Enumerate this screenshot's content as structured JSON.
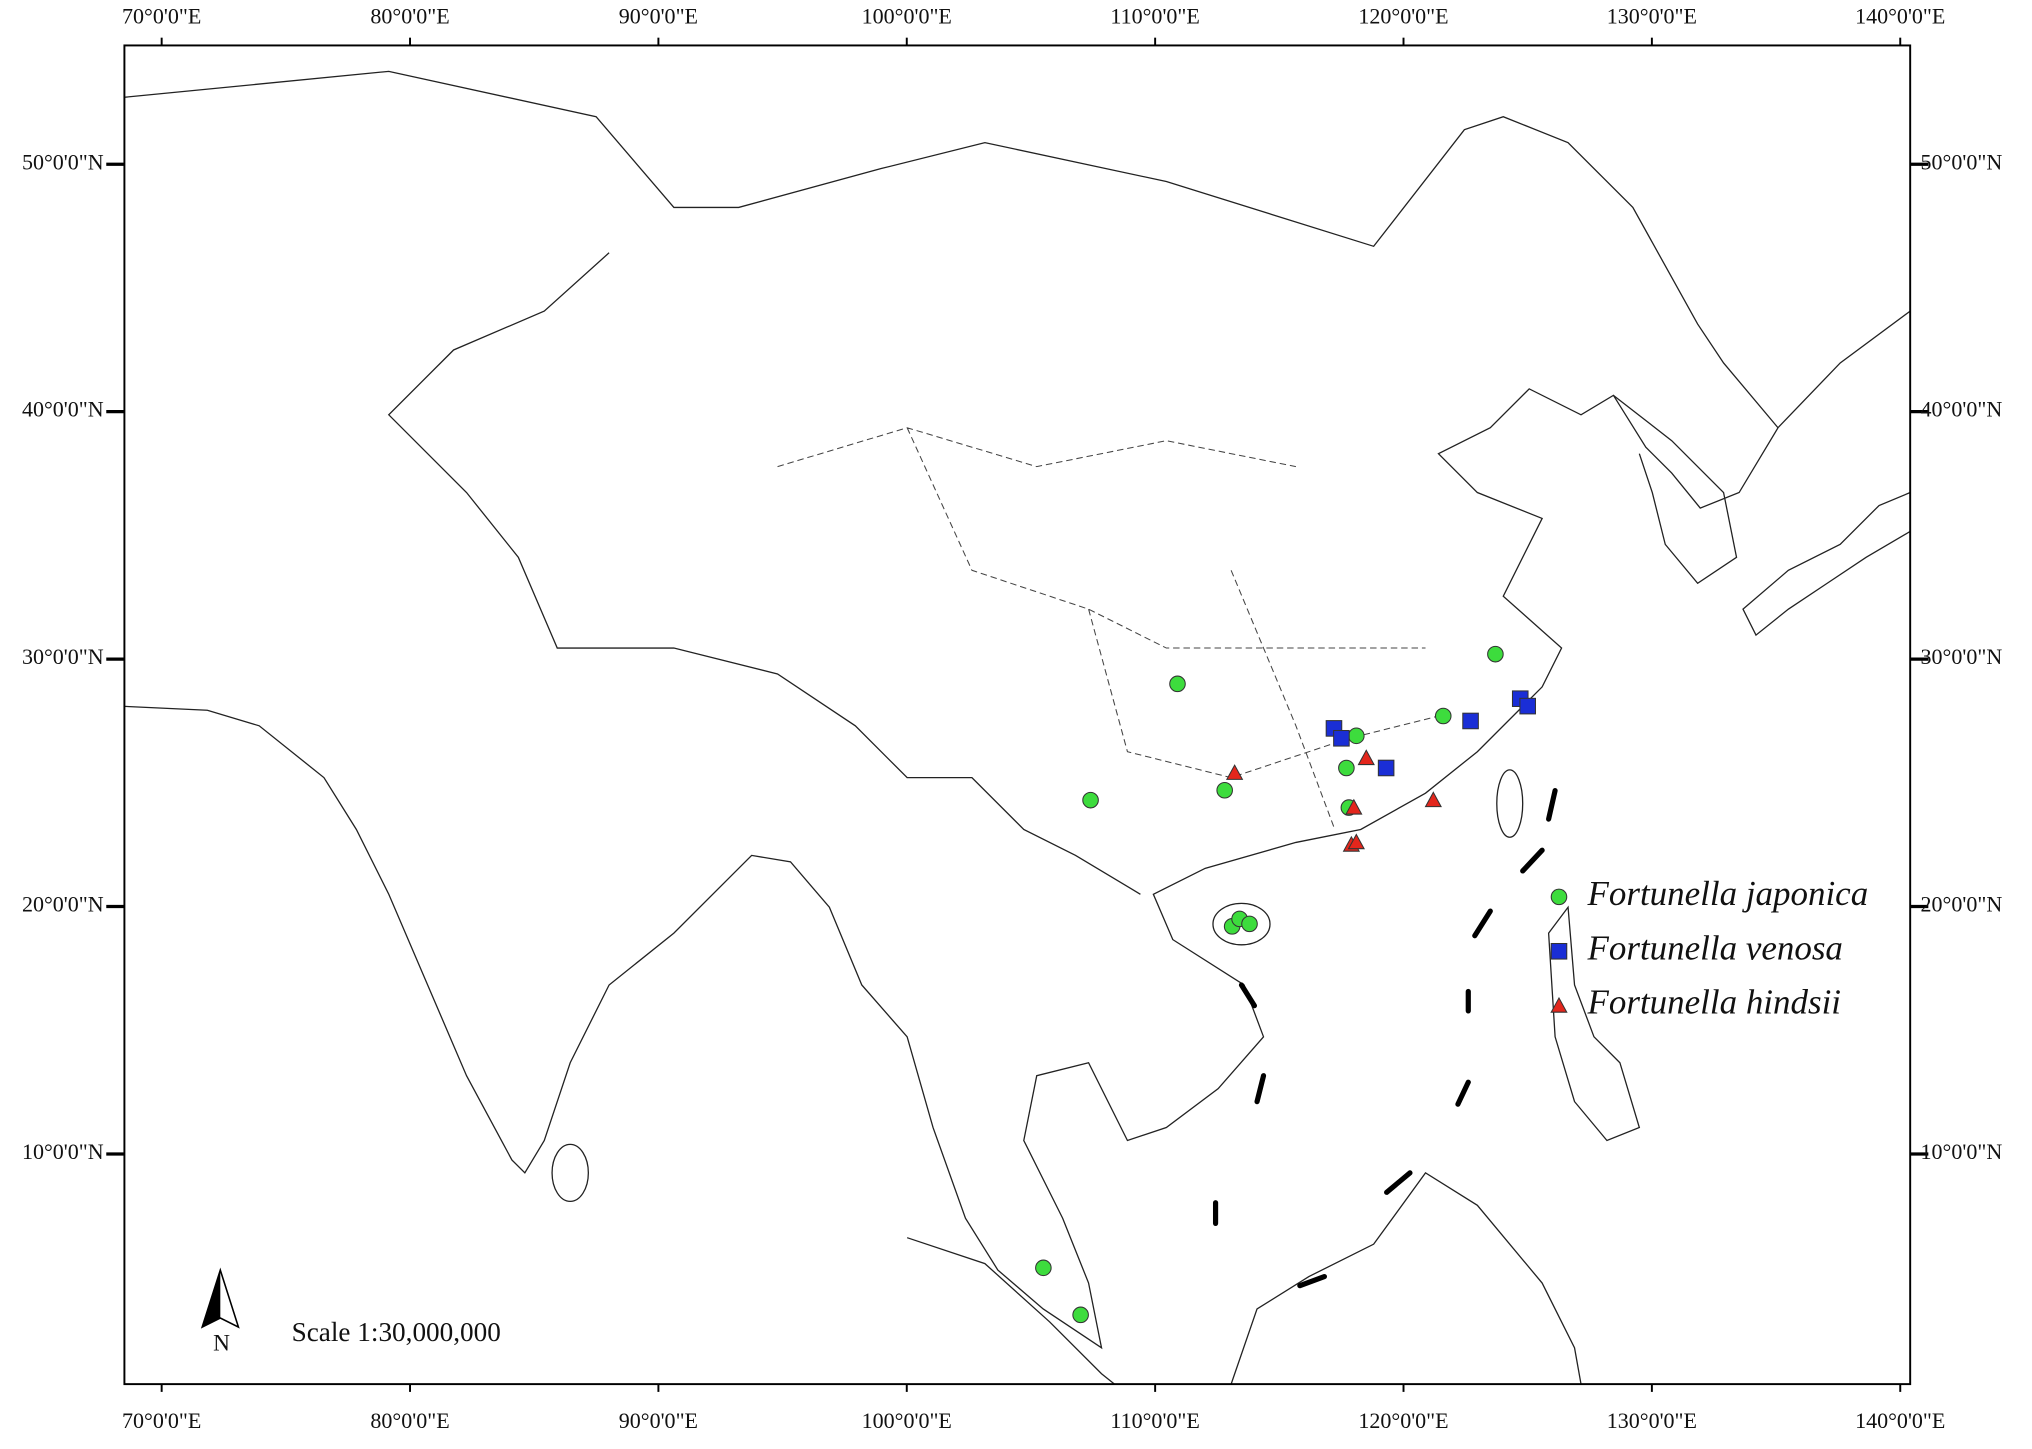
{
  "chart_data": {
    "type": "scatter",
    "xlim": [
      68.5,
      140.4
    ],
    "ylim": [
      0.7,
      54.8
    ],
    "xticks": [
      {
        "value": 70,
        "label": "70°0'0\"E"
      },
      {
        "value": 80,
        "label": "80°0'0\"E"
      },
      {
        "value": 90,
        "label": "90°0'0\"E"
      },
      {
        "value": 100,
        "label": "100°0'0\"E"
      },
      {
        "value": 110,
        "label": "110°0'0\"E"
      },
      {
        "value": 120,
        "label": "120°0'0\"E"
      },
      {
        "value": 130,
        "label": "130°0'0\"E"
      },
      {
        "value": 140,
        "label": "140°0'0\"E"
      }
    ],
    "yticks": [
      {
        "value": 10,
        "label": "10°0'0\"N"
      },
      {
        "value": 20,
        "label": "20°0'0\"N"
      },
      {
        "value": 30,
        "label": "30°0'0\"N"
      },
      {
        "value": 40,
        "label": "40°0'0\"N"
      },
      {
        "value": 50,
        "label": "50°0'0\"N"
      }
    ],
    "series": [
      {
        "name": "Fortunella japonica",
        "color": "#3ddc3d",
        "marker": "circle",
        "x": [
          110.9,
          107.4,
          112.8,
          118.1,
          117.7,
          117.8,
          121.6,
          123.7,
          113.1,
          113.4,
          113.8,
          105.5,
          107.0
        ],
        "values": [
          29.0,
          24.3,
          24.7,
          26.9,
          25.6,
          24.0,
          27.7,
          30.2,
          19.2,
          19.5,
          19.3,
          5.4,
          3.5
        ]
      },
      {
        "name": "Fortunella venosa",
        "color": "#1a2ed6",
        "marker": "square",
        "x": [
          117.2,
          117.5,
          119.3,
          122.7,
          124.7,
          125.0
        ],
        "values": [
          27.2,
          26.8,
          25.6,
          27.5,
          28.4,
          28.1
        ]
      },
      {
        "name": "Fortunella hindsii",
        "color": "#e3261c",
        "marker": "triangle",
        "x": [
          113.2,
          118.5,
          118.0,
          121.2,
          117.9,
          118.1
        ],
        "values": [
          25.4,
          26.0,
          24.0,
          24.3,
          22.5,
          22.6
        ]
      }
    ],
    "annotations": [
      "Scale 1:30,000,000",
      "N"
    ]
  }
}
